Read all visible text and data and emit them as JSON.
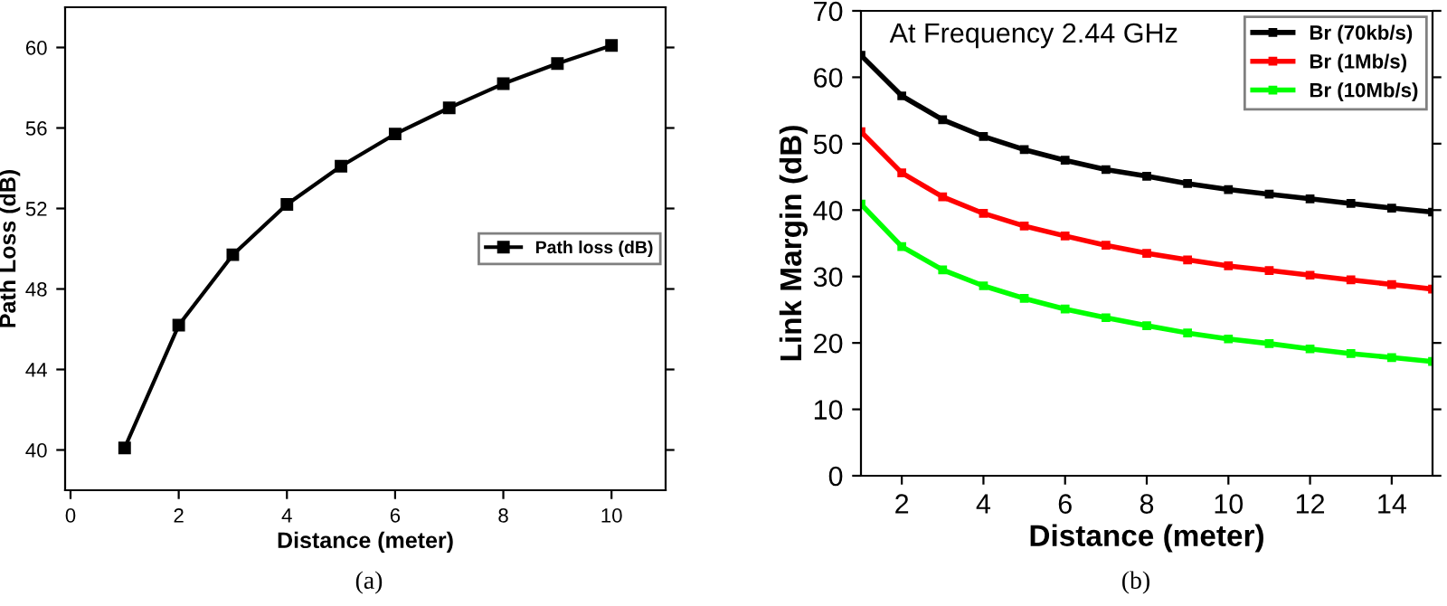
{
  "chart_data": [
    {
      "type": "line",
      "xlabel": "Distance (meter)",
      "ylabel": "Path Loss (dB)",
      "x": [
        1,
        2,
        3,
        4,
        5,
        6,
        7,
        8,
        9,
        10
      ],
      "series": [
        {
          "name": "Path loss (dB)",
          "color": "#000000",
          "values": [
            40.1,
            46.2,
            49.7,
            52.2,
            54.1,
            55.7,
            57.0,
            58.2,
            59.2,
            60.1
          ]
        }
      ],
      "xlim": [
        -0.1,
        11
      ],
      "xticks": [
        0,
        2,
        4,
        6,
        8,
        10
      ],
      "ylim": [
        38,
        62
      ],
      "yticks": [
        40,
        44,
        48,
        52,
        56,
        60
      ],
      "marker": "square",
      "legend": "right",
      "grid": false,
      "annotations": [
        "(a)"
      ]
    },
    {
      "type": "line",
      "xlabel": "Distance (meter)",
      "ylabel": "Link Margin (dB)",
      "x": [
        1,
        2,
        3,
        4,
        5,
        6,
        7,
        8,
        9,
        10,
        11,
        12,
        13,
        14,
        15
      ],
      "series": [
        {
          "name": "Br (70kb/s)",
          "color": "#000000",
          "values": [
            63.3,
            57.2,
            53.6,
            51.1,
            49.1,
            47.5,
            46.1,
            45.1,
            44.0,
            43.1,
            42.4,
            41.7,
            41.0,
            40.3,
            39.7
          ]
        },
        {
          "name": "Br (1Mb/s)",
          "color": "#ff0000",
          "values": [
            51.8,
            45.6,
            42.0,
            39.5,
            37.6,
            36.1,
            34.7,
            33.5,
            32.5,
            31.6,
            30.9,
            30.2,
            29.5,
            28.8,
            28.1
          ]
        },
        {
          "name": "Br (10Mb/s)",
          "color": "#00ff00",
          "values": [
            40.9,
            34.5,
            31.0,
            28.6,
            26.7,
            25.1,
            23.8,
            22.6,
            21.5,
            20.6,
            19.9,
            19.1,
            18.4,
            17.8,
            17.2
          ]
        }
      ],
      "xlim": [
        1,
        15
      ],
      "xticks": [
        2,
        4,
        6,
        8,
        10,
        12,
        14
      ],
      "ylim": [
        0,
        70
      ],
      "yticks": [
        0,
        10,
        20,
        30,
        40,
        50,
        60,
        70
      ],
      "marker": "square",
      "legend": "top right",
      "grid": false,
      "annotations": [
        "At Frequency 2.44 GHz",
        "(b)"
      ]
    }
  ]
}
